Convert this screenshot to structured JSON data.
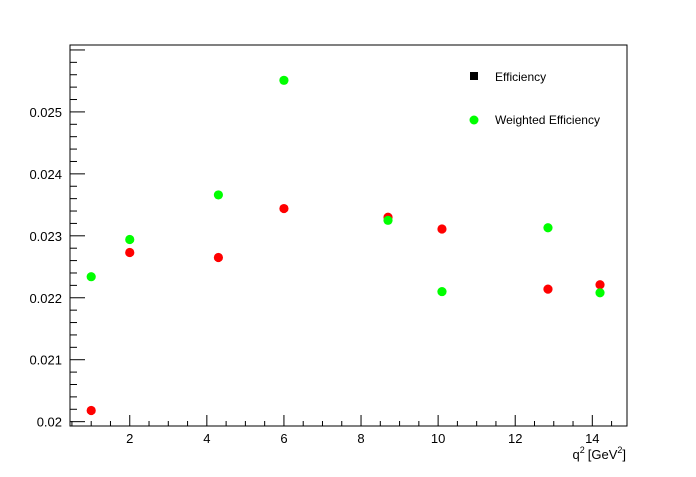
{
  "chart_data": {
    "type": "scatter",
    "xlabel": "q",
    "xlabel_sup": "2",
    "xlabel_unit": "[GeV",
    "xlabel_unit_sup": "2",
    "xlabel_close": "]",
    "xlim": [
      0.45,
      14.9
    ],
    "ylim": [
      0.01993,
      0.02608
    ],
    "x_ticks": [
      2,
      4,
      6,
      8,
      10,
      12,
      14
    ],
    "x_tick_labels": [
      "2",
      "4",
      "6",
      "8",
      "10",
      "12",
      "14"
    ],
    "y_ticks": [
      0.02,
      0.021,
      0.022,
      0.023,
      0.024,
      0.025
    ],
    "y_tick_labels": [
      "0.02",
      "0.021",
      "0.022",
      "0.023",
      "0.024",
      "0.025"
    ],
    "legend_position": "top-right",
    "series": [
      {
        "name": "Efficiency",
        "legend_marker": "square",
        "legend_color": "#000000",
        "color": "#ff0000",
        "x": [
          1,
          2,
          4.3,
          6,
          8.7,
          10.1,
          12.85,
          14.2
        ],
        "y": [
          0.02018,
          0.02273,
          0.02265,
          0.02344,
          0.0233,
          0.02311,
          0.02214,
          0.02221
        ]
      },
      {
        "name": "Weighted Efficiency",
        "legend_marker": "circle",
        "legend_color": "#00ff00",
        "color": "#00ff00",
        "x": [
          1,
          2,
          4.3,
          6,
          8.7,
          10.1,
          12.85,
          14.2
        ],
        "y": [
          0.02234,
          0.02294,
          0.02366,
          0.02551,
          0.02325,
          0.0221,
          0.02313,
          0.02208
        ]
      }
    ]
  }
}
